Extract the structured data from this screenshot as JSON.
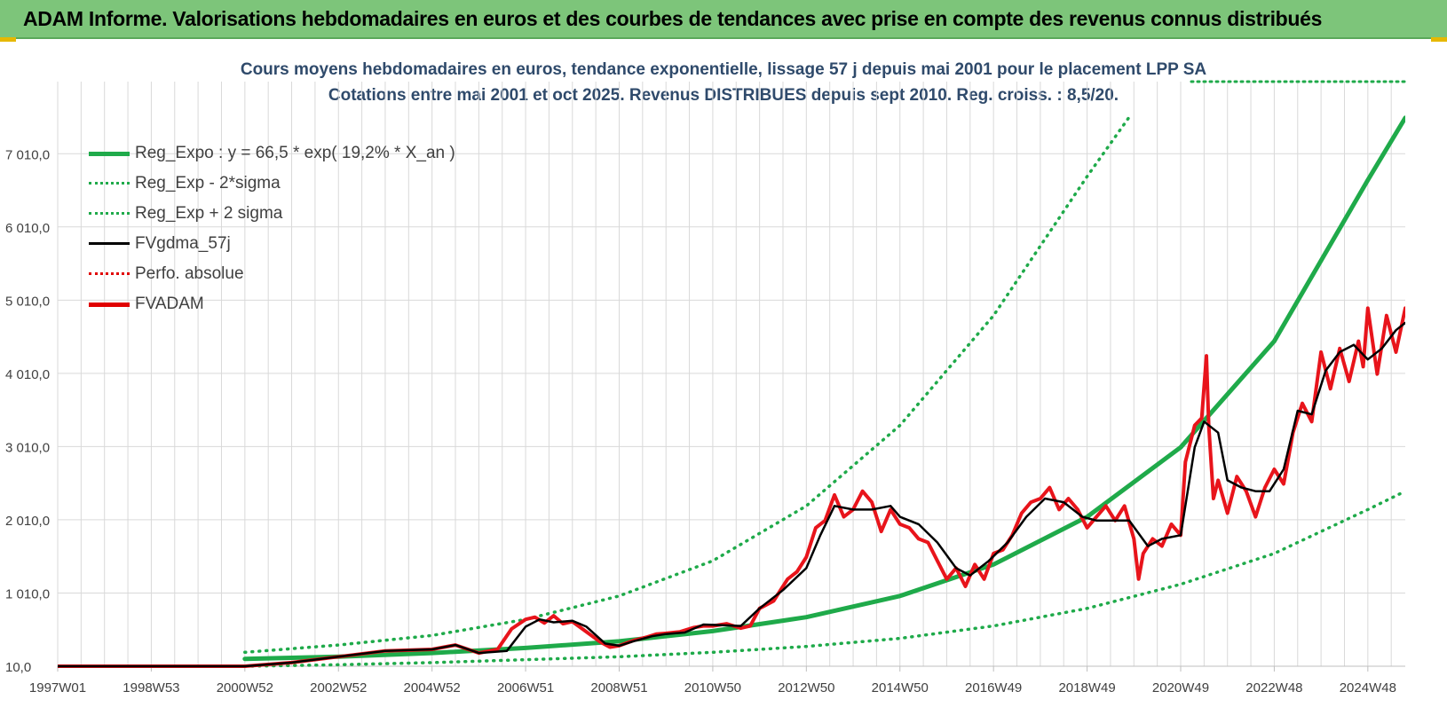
{
  "banner": {
    "title": "ADAM Informe. Valorisations hebdomadaires en euros et des courbes de tendances avec prise en compte des revenus connus distribués"
  },
  "chart": {
    "title_line1": "Cours moyens hebdomadaires en euros, tendance exponentielle, lissage 57 j depuis mai 2001 pour le placement LPP SA",
    "title_line2": "Cotations entre mai 2001 et oct 2025.  Revenus DISTRIBUES depuis sept 2010.  Reg. croiss. : 8,5/20."
  },
  "legend": [
    {
      "label": "Reg_Expo : y = 66,5 * exp( 19,2% *  X_an )",
      "color": "#1faa4a",
      "style": "solid-thick"
    },
    {
      "label": "Reg_Exp - 2*sigma",
      "color": "#1faa4a",
      "style": "dotted"
    },
    {
      "label": "Reg_Exp + 2 sigma",
      "color": "#1faa4a",
      "style": "dotted"
    },
    {
      "label": "FVgdma_57j",
      "color": "#000000",
      "style": "solid"
    },
    {
      "label": "Perfo. absolue",
      "color": "#e00000",
      "style": "dotted"
    },
    {
      "label": "FVADAM",
      "color": "#e00000",
      "style": "solid-thick"
    }
  ],
  "colors": {
    "green": "#1faa4a",
    "red": "#e8141b",
    "black": "#000000",
    "grid": "#d9d9d9",
    "axis_text": "#404040"
  },
  "chart_data": {
    "type": "line",
    "x_unit": "year",
    "xlim": [
      1997.0,
      2025.8
    ],
    "ylim": [
      10,
      7510
    ],
    "y_ticks": [
      10,
      1010,
      2010,
      3010,
      4010,
      5010,
      6010,
      7010
    ],
    "y_tick_labels": [
      "10,0",
      "1 010,0",
      "2 010,0",
      "3 010,0",
      "4 010,0",
      "5 010,0",
      "6 010,0",
      "7 010,0"
    ],
    "x_ticks": [
      1997.0,
      1999.0,
      2001.0,
      2003.0,
      2005.0,
      2007.0,
      2009.0,
      2011.0,
      2013.0,
      2015.0,
      2017.0,
      2019.0,
      2021.0,
      2023.0,
      2025.0
    ],
    "x_tick_labels": [
      "1997W01",
      "1998W53",
      "2000W52",
      "2002W52",
      "2004W52",
      "2006W51",
      "2008W51",
      "2010W50",
      "2012W50",
      "2014W50",
      "2016W49",
      "2018W49",
      "2020W49",
      "2022W48",
      "2024W48"
    ],
    "grid": true,
    "series": [
      {
        "name": "Reg_Expo : y = 66,5 * exp( 19,2% *  X_an )",
        "x": [
          2001.0,
          2003.0,
          2005.0,
          2007.0,
          2009.0,
          2011.0,
          2013.0,
          2015.0,
          2017.0,
          2019.0,
          2021.0,
          2023.0,
          2025.0,
          2025.8
        ],
        "y": [
          110,
          140,
          190,
          260,
          350,
          490,
          680,
          970,
          1400,
          2050,
          3000,
          4450,
          6650,
          7500
        ]
      },
      {
        "name": "Reg_Exp - 2*sigma",
        "x": [
          2001.0,
          2003.0,
          2005.0,
          2007.0,
          2009.0,
          2011.0,
          2013.0,
          2015.0,
          2017.0,
          2019.0,
          2021.0,
          2023.0,
          2025.0,
          2025.8
        ],
        "y": [
          10,
          30,
          60,
          100,
          140,
          200,
          280,
          390,
          560,
          800,
          1130,
          1550,
          2150,
          2400
        ]
      },
      {
        "name": "Reg_Exp + 2 sigma",
        "x": [
          2001.0,
          2003.0,
          2005.0,
          2007.0,
          2009.0,
          2011.0,
          2013.0,
          2015.0,
          2017.0,
          2019.0,
          2019.9
        ],
        "y": [
          200,
          300,
          430,
          650,
          970,
          1450,
          2200,
          3300,
          4800,
          6700,
          7510
        ]
      },
      {
        "name": "FVgdma_57j",
        "x": [
          1997.0,
          2001.0,
          2002.0,
          2003.0,
          2004.0,
          2005.0,
          2005.5,
          2006.0,
          2006.6,
          2007.0,
          2007.3,
          2007.6,
          2008.0,
          2008.3,
          2008.7,
          2009.0,
          2009.3,
          2009.7,
          2010.0,
          2010.4,
          2010.8,
          2011.2,
          2011.6,
          2012.0,
          2012.5,
          2013.0,
          2013.3,
          2013.6,
          2014.0,
          2014.4,
          2014.8,
          2015.0,
          2015.4,
          2015.8,
          2016.2,
          2016.5,
          2016.9,
          2017.3,
          2017.7,
          2018.1,
          2018.5,
          2018.9,
          2019.2,
          2019.6,
          2019.9,
          2020.3,
          2020.6,
          2021.0,
          2021.3,
          2021.5,
          2021.8,
          2022.0,
          2022.3,
          2022.6,
          2022.9,
          2023.2,
          2023.5,
          2023.8,
          2024.1,
          2024.4,
          2024.7,
          2025.0,
          2025.3,
          2025.6,
          2025.8
        ],
        "y": [
          10,
          10,
          60,
          140,
          220,
          240,
          300,
          190,
          220,
          550,
          650,
          610,
          630,
          550,
          320,
          290,
          350,
          420,
          450,
          470,
          580,
          570,
          560,
          800,
          1050,
          1350,
          1800,
          2200,
          2150,
          2150,
          2200,
          2050,
          1950,
          1700,
          1350,
          1250,
          1450,
          1700,
          2050,
          2300,
          2250,
          2050,
          2000,
          2000,
          2000,
          1650,
          1750,
          1800,
          3000,
          3350,
          3200,
          2550,
          2450,
          2400,
          2400,
          2700,
          3500,
          3450,
          4050,
          4300,
          4400,
          4200,
          4350,
          4600,
          4700
        ]
      },
      {
        "name": "FVADAM",
        "x": [
          1997.0,
          2001.0,
          2002.0,
          2003.0,
          2004.0,
          2005.0,
          2005.5,
          2006.0,
          2006.4,
          2006.7,
          2007.0,
          2007.2,
          2007.4,
          2007.6,
          2007.8,
          2008.0,
          2008.3,
          2008.6,
          2008.8,
          2009.0,
          2009.3,
          2009.6,
          2009.8,
          2010.0,
          2010.3,
          2010.6,
          2010.8,
          2011.0,
          2011.3,
          2011.6,
          2011.8,
          2012.0,
          2012.3,
          2012.6,
          2012.8,
          2013.0,
          2013.2,
          2013.4,
          2013.6,
          2013.8,
          2014.0,
          2014.2,
          2014.4,
          2014.6,
          2014.8,
          2015.0,
          2015.2,
          2015.4,
          2015.6,
          2015.8,
          2016.0,
          2016.2,
          2016.4,
          2016.6,
          2016.8,
          2017.0,
          2017.2,
          2017.4,
          2017.6,
          2017.8,
          2018.0,
          2018.2,
          2018.4,
          2018.6,
          2018.8,
          2019.0,
          2019.2,
          2019.4,
          2019.6,
          2019.8,
          2020.0,
          2020.1,
          2020.2,
          2020.4,
          2020.6,
          2020.8,
          2021.0,
          2021.1,
          2021.3,
          2021.45,
          2021.55,
          2021.6,
          2021.7,
          2021.8,
          2022.0,
          2022.2,
          2022.4,
          2022.6,
          2022.8,
          2023.0,
          2023.2,
          2023.4,
          2023.6,
          2023.8,
          2024.0,
          2024.2,
          2024.4,
          2024.6,
          2024.8,
          2024.9,
          2025.0,
          2025.2,
          2025.4,
          2025.6,
          2025.8
        ],
        "y": [
          10,
          10,
          60,
          140,
          220,
          240,
          300,
          190,
          240,
          520,
          650,
          680,
          600,
          700,
          590,
          620,
          480,
          340,
          270,
          290,
          360,
          410,
          450,
          460,
          480,
          540,
          560,
          560,
          590,
          530,
          560,
          800,
          900,
          1200,
          1300,
          1500,
          1900,
          2000,
          2350,
          2050,
          2150,
          2400,
          2250,
          1850,
          2150,
          1950,
          1900,
          1750,
          1700,
          1450,
          1200,
          1350,
          1100,
          1400,
          1200,
          1550,
          1600,
          1800,
          2100,
          2250,
          2300,
          2450,
          2150,
          2300,
          2150,
          1900,
          2050,
          2200,
          2000,
          2200,
          1750,
          1200,
          1550,
          1750,
          1650,
          1950,
          1800,
          2800,
          3300,
          3400,
          4250,
          3300,
          2300,
          2550,
          2100,
          2600,
          2400,
          2050,
          2450,
          2700,
          2500,
          3200,
          3600,
          3350,
          4300,
          3800,
          4350,
          3900,
          4450,
          4100,
          4900,
          4000,
          4800,
          4300,
          4900
        ]
      }
    ]
  }
}
